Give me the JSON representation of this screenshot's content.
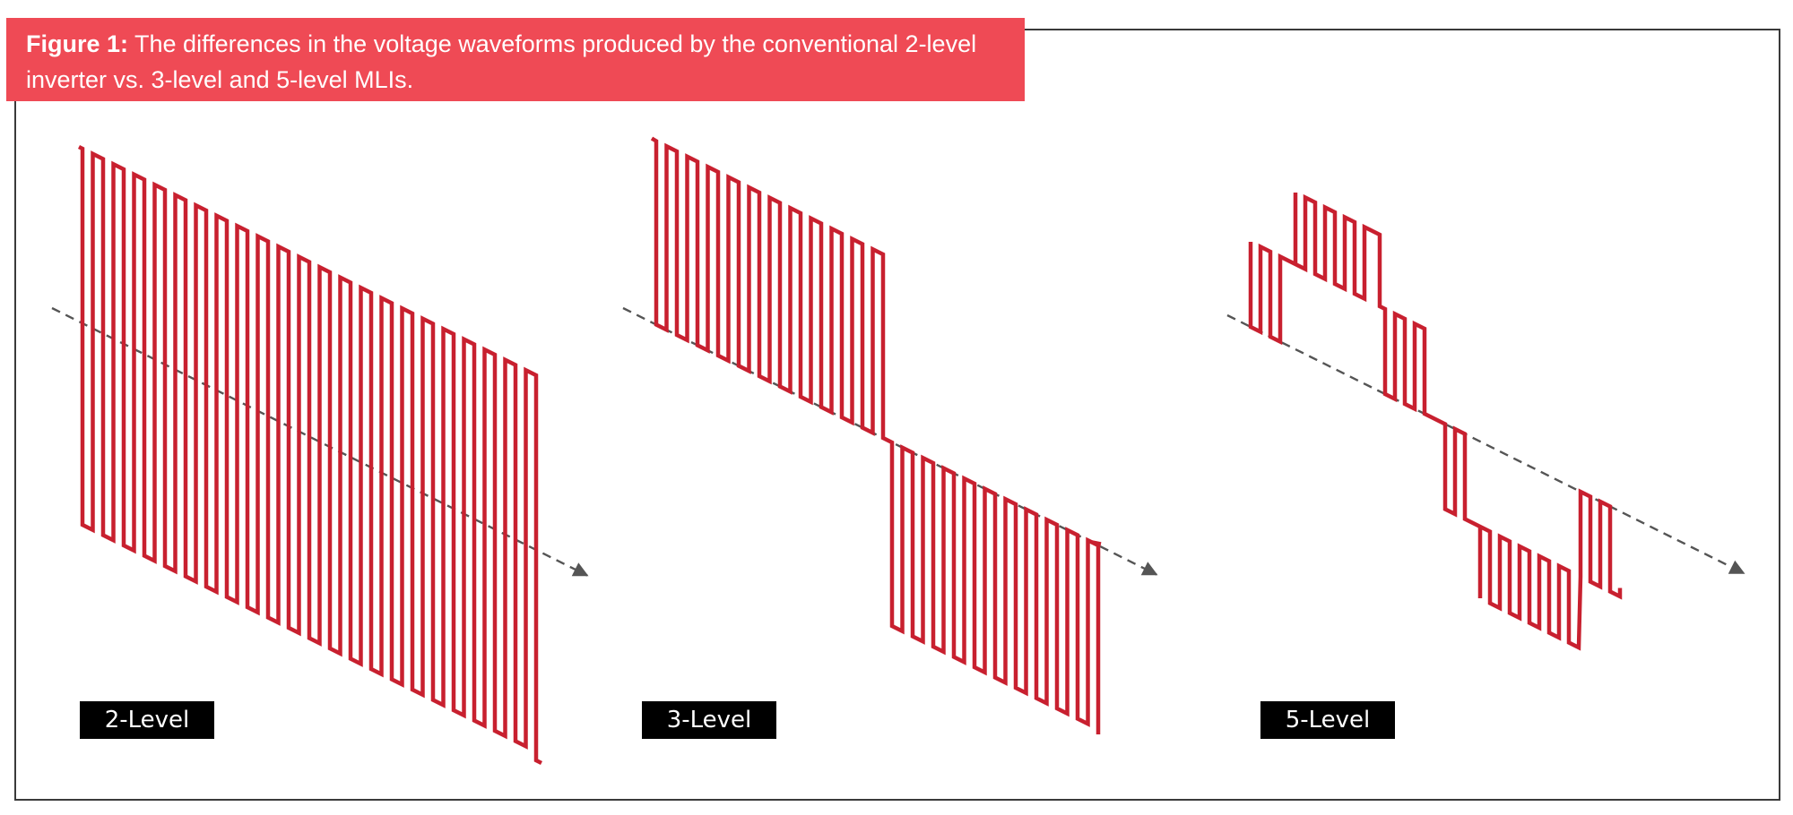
{
  "caption": {
    "label": "Figure 1:",
    "text": " The differences in the voltage waveforms produced by the conventional 2-level inverter vs. 3-level and 5-level MLIs."
  },
  "panels": [
    {
      "label": "2-Level",
      "levels": 2
    },
    {
      "label": "3-Level",
      "levels": 3
    },
    {
      "label": "5-Level",
      "levels": 5
    }
  ],
  "colors": {
    "caption_background": "#ef4a55",
    "caption_text": "#ffffff",
    "waveform": "#c8202f",
    "axis": "#555555",
    "label_background": "#000000",
    "label_text": "#ffffff",
    "frame": "#3a3a3a"
  }
}
